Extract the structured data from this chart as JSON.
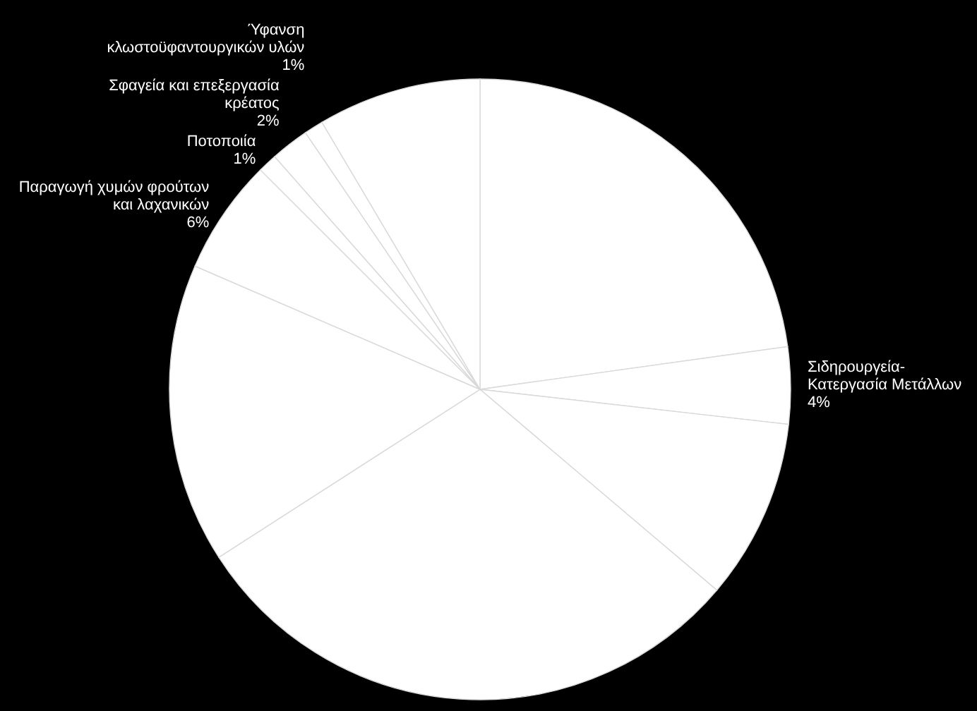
{
  "chart_data": {
    "type": "pie",
    "categories": [
      null,
      "Σιδηρουργεία-Κατεργασία Μετάλλων",
      null,
      null,
      null,
      "Παραγωγή χυμών φρούτων και λαχανικών",
      "Ποτοποιία",
      "Σφαγεία και επεξεργασία κρέατος",
      "Ύφανση κλωστοϋφαντουργικών υλών",
      null
    ],
    "values": [
      22.8,
      4,
      9.4,
      29.7,
      15.6,
      6,
      1,
      2,
      1,
      8.5
    ],
    "colors": [
      "#ffffff",
      "#ffffff",
      "#ffffff",
      "#ffffff",
      "#ffffff",
      "#ffffff",
      "#ffffff",
      "#ffffff",
      "#ffffff",
      "#ffffff"
    ],
    "value_labels": [
      null,
      "4%",
      null,
      null,
      null,
      "6%",
      "1%",
      "2%",
      "1%",
      null
    ]
  }
}
